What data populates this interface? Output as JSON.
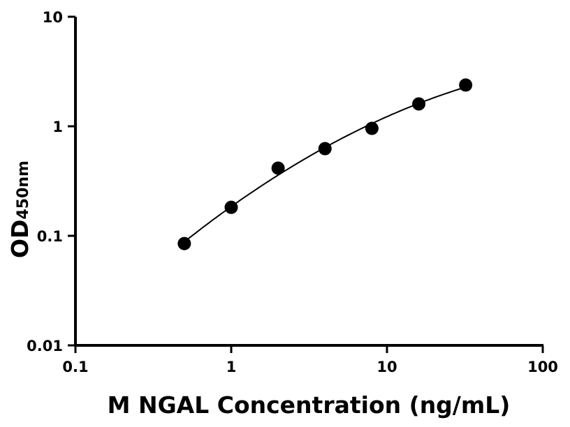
{
  "chart_data": {
    "type": "scatter",
    "title": "",
    "xlabel": "M NGAL Concentration (ng/mL)",
    "ylabel": "OD",
    "ylabel_subscript": "450nm",
    "x_scale": "log",
    "y_scale": "log",
    "xlim": [
      0.1,
      100
    ],
    "ylim": [
      0.01,
      10
    ],
    "x_ticks": [
      "0.1",
      "1",
      "10",
      "100"
    ],
    "y_ticks": [
      "0.01",
      "0.1",
      "1",
      "10"
    ],
    "grid": false,
    "fit_curve": true,
    "series": [
      {
        "x": [
          0.5,
          1,
          2,
          4,
          8,
          16,
          32
        ],
        "y": [
          0.085,
          0.182,
          0.415,
          0.625,
          0.957,
          1.6,
          2.38
        ],
        "color": "#000000"
      }
    ]
  }
}
